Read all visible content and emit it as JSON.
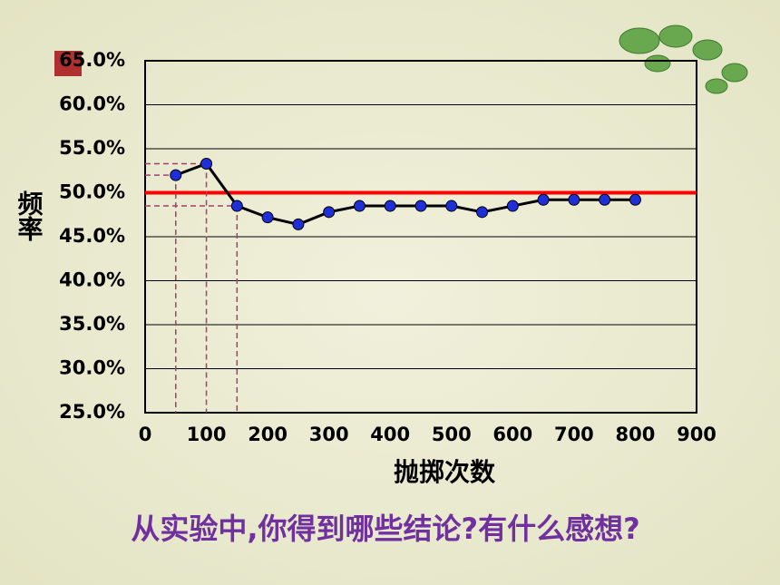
{
  "chart_data": {
    "type": "line",
    "x": [
      50,
      100,
      150,
      200,
      250,
      300,
      350,
      400,
      450,
      500,
      550,
      600,
      650,
      700,
      750,
      800
    ],
    "series": [
      {
        "color": "#000000",
        "marker_color": "#1f2fd8",
        "values": [
          52.0,
          53.3,
          48.5,
          47.2,
          46.4,
          47.8,
          48.5,
          48.5,
          48.5,
          48.5,
          47.8,
          48.5,
          49.2,
          49.2,
          49.2,
          49.2
        ]
      }
    ],
    "xlim": [
      0,
      900
    ],
    "xticks": [
      0,
      100,
      200,
      300,
      400,
      500,
      600,
      700,
      800,
      900
    ],
    "ylim": [
      25,
      65
    ],
    "yticks": [
      {
        "value": 25,
        "label": "25.0%"
      },
      {
        "value": 30,
        "label": "30.0%"
      },
      {
        "value": 35,
        "label": "35.0%"
      },
      {
        "value": 40,
        "label": "40.0%"
      },
      {
        "value": 45,
        "label": "45.0%"
      },
      {
        "value": 50,
        "label": "50.0%"
      },
      {
        "value": 55,
        "label": "55.0%"
      },
      {
        "value": 60,
        "label": "60.0%"
      },
      {
        "value": 65,
        "label": "65.0%"
      }
    ],
    "grid": true,
    "reference_line": {
      "value": 50,
      "color": "#ff0000"
    },
    "guide_points": [
      0,
      1,
      2
    ],
    "xlabel": "抛掷次数",
    "ylabel": "频率",
    "caption": "从实验中,你得到哪些结论?有什么感想?"
  }
}
